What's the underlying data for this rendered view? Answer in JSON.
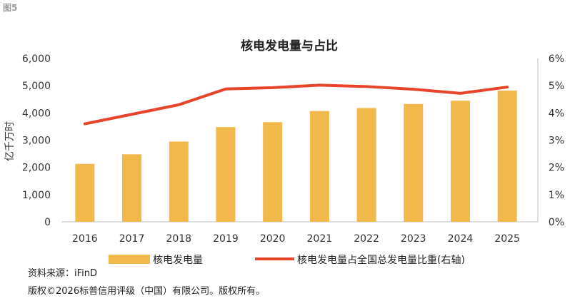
{
  "figure_label": "图5",
  "chart_data": {
    "type": "bar+line",
    "title": "核电发电量与占比",
    "ylabel": "亿千万时",
    "categories": [
      "2016",
      "2017",
      "2018",
      "2019",
      "2020",
      "2021",
      "2022",
      "2023",
      "2024",
      "2025"
    ],
    "bar_series": {
      "name": "核电发电量",
      "values": [
        2130,
        2480,
        2950,
        3480,
        3660,
        4070,
        4180,
        4330,
        4450,
        4820
      ],
      "color": "#F2B84B",
      "axis": "left"
    },
    "line_series": {
      "name": "核电发电量占全国总发电量比重(右轴)",
      "values": [
        3.6,
        3.95,
        4.3,
        4.88,
        4.93,
        5.02,
        4.97,
        4.87,
        4.72,
        4.95
      ],
      "color": "#E8442A",
      "axis": "right"
    },
    "left_axis": {
      "ylim": [
        0,
        6000
      ],
      "ticks": [
        "0",
        "1,000",
        "2,000",
        "3,000",
        "4,000",
        "5,000",
        "6,000"
      ]
    },
    "right_axis": {
      "ylim": [
        0,
        6
      ],
      "ticks": [
        "0%",
        "1%",
        "2%",
        "3%",
        "4%",
        "5%",
        "6%"
      ]
    },
    "legend_position": "bottom",
    "grid": false
  },
  "source_note": "资料来源：iFinD",
  "copyright": "版权©2026标普信用评级（中国）有限公司。版权所有。"
}
